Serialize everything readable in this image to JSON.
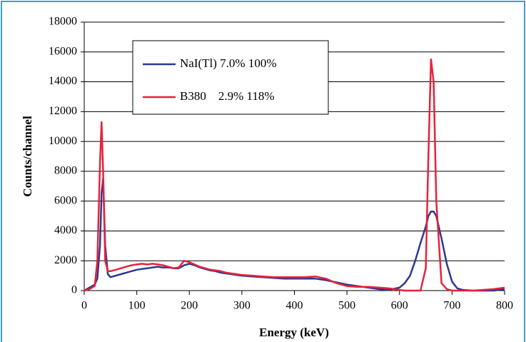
{
  "chart_data": {
    "type": "line",
    "xlabel": "Energy (keV)",
    "ylabel": "Counts/channel",
    "x": [
      0,
      10,
      20,
      25,
      30,
      33,
      36,
      40,
      45,
      50,
      60,
      70,
      80,
      90,
      100,
      110,
      120,
      130,
      140,
      150,
      160,
      170,
      180,
      190,
      200,
      210,
      220,
      230,
      240,
      250,
      260,
      270,
      280,
      290,
      300,
      320,
      340,
      360,
      380,
      400,
      420,
      440,
      460,
      480,
      500,
      520,
      540,
      560,
      580,
      600,
      610,
      620,
      630,
      640,
      650,
      655,
      660,
      665,
      670,
      680,
      690,
      700,
      710,
      720,
      740,
      760,
      780,
      800
    ],
    "series": [
      {
        "name": "NaI(Tl) 7.0% 100%",
        "color": "#2b3990",
        "values": [
          0,
          200,
          400,
          800,
          3000,
          6500,
          7500,
          3000,
          1100,
          900,
          1000,
          1100,
          1200,
          1300,
          1400,
          1450,
          1500,
          1550,
          1600,
          1550,
          1550,
          1500,
          1500,
          1700,
          1800,
          1700,
          1550,
          1450,
          1350,
          1300,
          1200,
          1150,
          1100,
          1050,
          1000,
          950,
          900,
          850,
          800,
          800,
          800,
          800,
          700,
          550,
          400,
          300,
          200,
          100,
          50,
          200,
          500,
          1000,
          2000,
          3200,
          4300,
          5000,
          5300,
          5300,
          5000,
          3500,
          1800,
          600,
          150,
          50,
          0,
          0,
          0,
          100
        ]
      },
      {
        "name": "B380    2.9% 118%",
        "color": "#e8213a",
        "values": [
          0,
          100,
          300,
          2000,
          8500,
          11300,
          8000,
          2000,
          1300,
          1300,
          1400,
          1500,
          1600,
          1700,
          1750,
          1800,
          1750,
          1800,
          1750,
          1700,
          1600,
          1500,
          1550,
          2000,
          1900,
          1750,
          1600,
          1500,
          1400,
          1350,
          1300,
          1200,
          1150,
          1100,
          1050,
          1000,
          950,
          900,
          900,
          900,
          900,
          950,
          800,
          500,
          300,
          250,
          250,
          200,
          150,
          50,
          0,
          0,
          0,
          0,
          1500,
          9000,
          15500,
          14000,
          6000,
          500,
          100,
          0,
          0,
          0,
          0,
          50,
          100,
          200
        ]
      }
    ],
    "xlim": [
      0,
      800
    ],
    "xticks": [
      0,
      100,
      200,
      300,
      400,
      500,
      600,
      700,
      800
    ],
    "ylim": [
      0,
      18000
    ],
    "yticks": [
      0,
      2000,
      4000,
      6000,
      8000,
      10000,
      12000,
      14000,
      16000,
      18000
    ],
    "grid": true
  }
}
